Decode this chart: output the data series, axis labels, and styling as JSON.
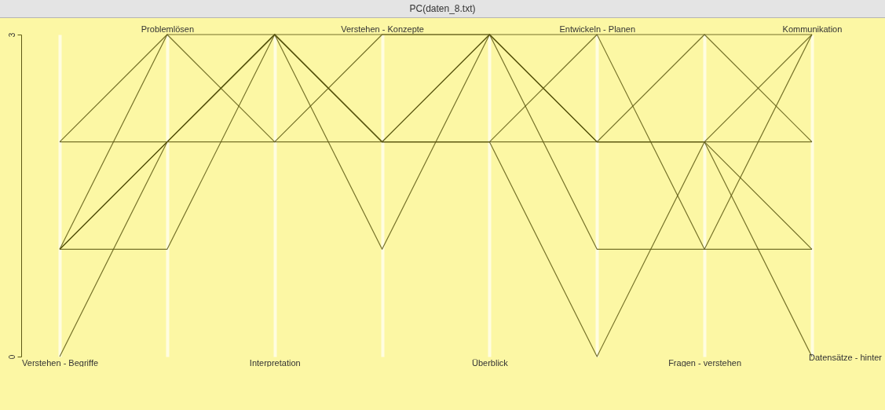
{
  "chart_data": {
    "type": "line",
    "title": "PC(daten_8.txt)",
    "categories": [
      "Verstehen - Begriffe",
      "Problemlösen",
      "Interpretation",
      "Verstehen - Konzepte",
      "Überblick",
      "Entwickeln - Planen",
      "Fragen - verstehen",
      "Kommunikation"
    ],
    "series": [
      {
        "color": "#5e5a14",
        "values": [
          1,
          2,
          3,
          2,
          3,
          2,
          3,
          3
        ]
      },
      {
        "color": "#5e5a14",
        "values": [
          1,
          2,
          3,
          2,
          3,
          2,
          2,
          3
        ]
      },
      {
        "color": "#5e5a14",
        "values": [
          1,
          2,
          3,
          2,
          2,
          3,
          3,
          2
        ]
      },
      {
        "color": "#5e5a14",
        "values": [
          0,
          2,
          3,
          2,
          2,
          0,
          2,
          2
        ]
      },
      {
        "color": "#5e5a14",
        "values": [
          2,
          2,
          2,
          3,
          3,
          1,
          1,
          1
        ]
      },
      {
        "color": "#5e5a14",
        "values": [
          1,
          3,
          2,
          2,
          2,
          2,
          2,
          0
        ]
      },
      {
        "color": "#5e5a14",
        "values": [
          2,
          3,
          3,
          3,
          3,
          2,
          2,
          1
        ]
      },
      {
        "color": "#5e5a14",
        "values": [
          1,
          1,
          3,
          1,
          3,
          3,
          1,
          3
        ]
      }
    ],
    "ylim": [
      0,
      3
    ],
    "yticks": [
      0,
      3
    ],
    "grid": "x",
    "annotations": [
      "Datensätze - hinter"
    ]
  }
}
